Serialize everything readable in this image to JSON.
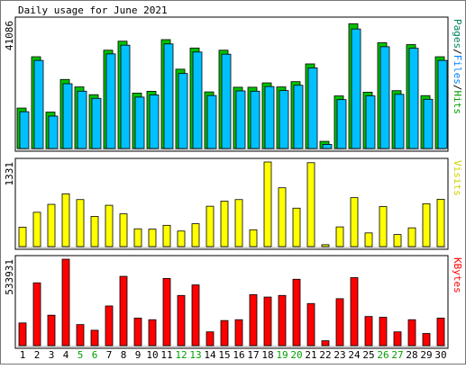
{
  "title": "Daily usage for June 2021",
  "chart_data": [
    {
      "type": "bar",
      "name": "pages-files-hits",
      "ymax_label": "41086",
      "ylim": [
        0,
        41086
      ],
      "right_label": [
        {
          "text": "Pages",
          "color": "#00805c"
        },
        {
          "text": "/",
          "color": "#000000"
        },
        {
          "text": "Files",
          "color": "#0080ff"
        },
        {
          "text": "/",
          "color": "#000000"
        },
        {
          "text": "Hits",
          "color": "#00a000"
        }
      ],
      "categories": [
        "1",
        "2",
        "3",
        "4",
        "5",
        "6",
        "7",
        "8",
        "9",
        "10",
        "11",
        "12",
        "13",
        "14",
        "15",
        "16",
        "17",
        "18",
        "19",
        "20",
        "21",
        "22",
        "23",
        "24",
        "25",
        "26",
        "27",
        "28",
        "29",
        "30"
      ],
      "series": [
        {
          "name": "Hits",
          "color": "#00c000",
          "values": [
            13000,
            29500,
            11700,
            22200,
            19800,
            17300,
            31600,
            34500,
            17800,
            18400,
            35000,
            25500,
            32300,
            18200,
            31600,
            19700,
            19700,
            21100,
            19800,
            21500,
            27200,
            2300,
            16900,
            40100,
            18100,
            34000,
            18600,
            33400,
            17000,
            29500
          ]
        },
        {
          "name": "Files",
          "color": "#00c0ff",
          "values": [
            12400,
            28900,
            11000,
            21400,
            19000,
            16700,
            31000,
            33800,
            17100,
            17800,
            34200,
            24700,
            31600,
            17600,
            30900,
            19100,
            19000,
            20500,
            19200,
            20900,
            26500,
            1900,
            16300,
            39000,
            17500,
            33300,
            18000,
            32800,
            16400,
            28900
          ]
        }
      ]
    },
    {
      "type": "bar",
      "name": "visits",
      "ymax_label": "1331",
      "ylim": [
        0,
        1331
      ],
      "right_label": [
        {
          "text": "Visits",
          "color": "#d0d000"
        }
      ],
      "categories": [
        "1",
        "2",
        "3",
        "4",
        "5",
        "6",
        "7",
        "8",
        "9",
        "10",
        "11",
        "12",
        "13",
        "14",
        "15",
        "16",
        "17",
        "18",
        "19",
        "20",
        "21",
        "22",
        "23",
        "24",
        "25",
        "26",
        "27",
        "28",
        "29",
        "30"
      ],
      "series": [
        {
          "name": "Visits",
          "color": "#ffff00",
          "values": [
            305,
            540,
            665,
            830,
            740,
            475,
            650,
            515,
            280,
            275,
            335,
            245,
            360,
            635,
            715,
            740,
            265,
            1331,
            925,
            605,
            1320,
            30,
            310,
            770,
            215,
            630,
            190,
            295,
            675,
            745
          ]
        }
      ]
    },
    {
      "type": "bar",
      "name": "kbytes",
      "ymax_label": "533931",
      "ylim": [
        0,
        533931
      ],
      "right_label": [
        {
          "text": "KBytes",
          "color": "#ff0000"
        }
      ],
      "categories": [
        "1",
        "2",
        "3",
        "4",
        "5",
        "6",
        "7",
        "8",
        "9",
        "10",
        "11",
        "12",
        "13",
        "14",
        "15",
        "16",
        "17",
        "18",
        "19",
        "20",
        "21",
        "22",
        "23",
        "24",
        "25",
        "26",
        "27",
        "28",
        "29",
        "30"
      ],
      "series": [
        {
          "name": "KBytes",
          "color": "#ff0000",
          "values": [
            140000,
            388000,
            188000,
            533931,
            130000,
            95000,
            245000,
            428000,
            170000,
            160000,
            415000,
            310000,
            375000,
            85000,
            155000,
            160000,
            315000,
            300000,
            310000,
            410000,
            260000,
            30000,
            290000,
            420000,
            180000,
            175000,
            85000,
            160000,
            75000,
            170000
          ]
        }
      ]
    }
  ],
  "x_labels": [
    {
      "text": "1",
      "color": "#000000"
    },
    {
      "text": "2",
      "color": "#000000"
    },
    {
      "text": "3",
      "color": "#000000"
    },
    {
      "text": "4",
      "color": "#000000"
    },
    {
      "text": "5",
      "color": "#00a000"
    },
    {
      "text": "6",
      "color": "#00a000"
    },
    {
      "text": "7",
      "color": "#000000"
    },
    {
      "text": "8",
      "color": "#000000"
    },
    {
      "text": "9",
      "color": "#000000"
    },
    {
      "text": "10",
      "color": "#000000"
    },
    {
      "text": "11",
      "color": "#000000"
    },
    {
      "text": "12",
      "color": "#00a000"
    },
    {
      "text": "13",
      "color": "#00a000"
    },
    {
      "text": "14",
      "color": "#000000"
    },
    {
      "text": "15",
      "color": "#000000"
    },
    {
      "text": "16",
      "color": "#000000"
    },
    {
      "text": "17",
      "color": "#000000"
    },
    {
      "text": "18",
      "color": "#000000"
    },
    {
      "text": "19",
      "color": "#00a000"
    },
    {
      "text": "20",
      "color": "#00a000"
    },
    {
      "text": "21",
      "color": "#000000"
    },
    {
      "text": "22",
      "color": "#000000"
    },
    {
      "text": "23",
      "color": "#000000"
    },
    {
      "text": "24",
      "color": "#000000"
    },
    {
      "text": "25",
      "color": "#000000"
    },
    {
      "text": "26",
      "color": "#00a000"
    },
    {
      "text": "27",
      "color": "#00a000"
    },
    {
      "text": "28",
      "color": "#000000"
    },
    {
      "text": "29",
      "color": "#000000"
    },
    {
      "text": "30",
      "color": "#000000"
    }
  ]
}
